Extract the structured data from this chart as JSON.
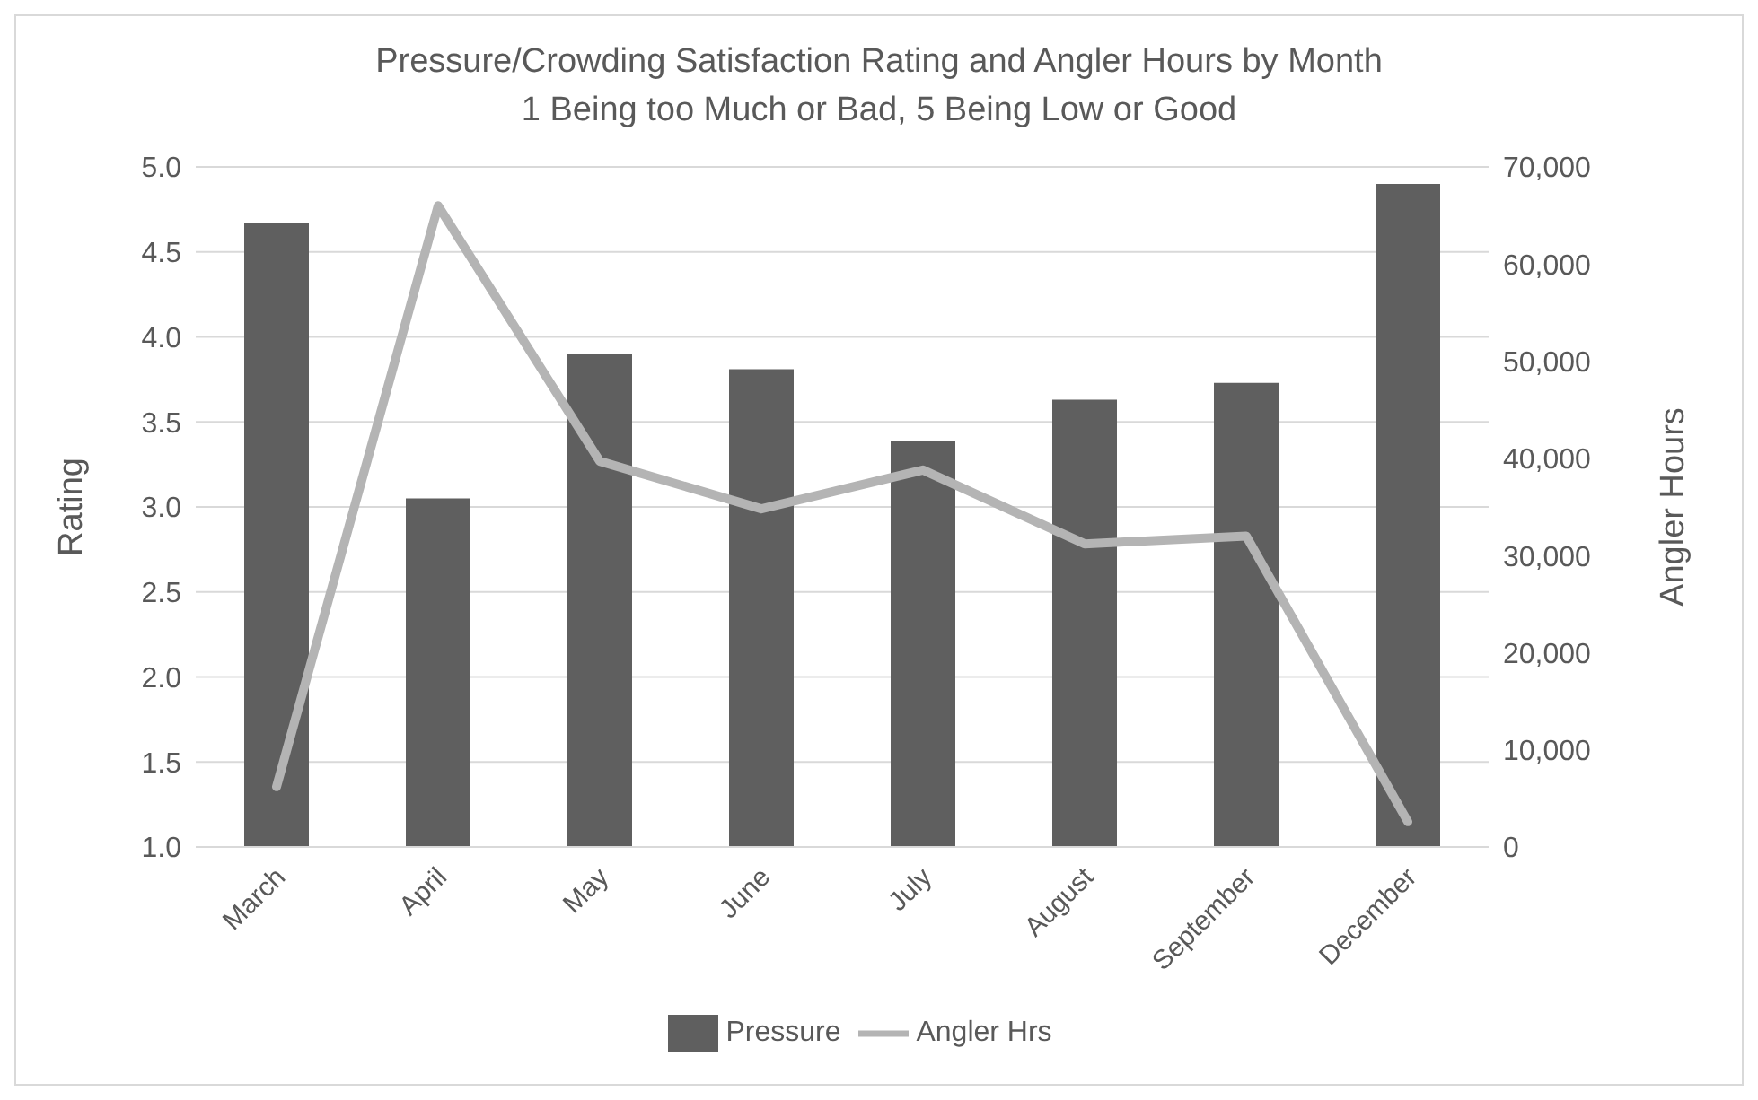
{
  "chart_data": {
    "type": "bar",
    "title": "Pressure/Crowding Satisfaction Rating and Angler Hours by Month",
    "subtitle": "1 Being too Much or Bad, 5 Being Low or Good",
    "categories": [
      "March",
      "April",
      "May",
      "June",
      "July",
      "August",
      "September",
      "December"
    ],
    "series": [
      {
        "name": "Pressure",
        "color": "#5f5f5f",
        "values": [
          4.67,
          3.05,
          3.9,
          3.81,
          3.39,
          3.63,
          3.73,
          4.9
        ]
      },
      {
        "name": "Angler Hrs",
        "type": "line",
        "axis": "y2",
        "color": "#b4b4b4",
        "values": [
          6200,
          66000,
          39700,
          34800,
          38800,
          31200,
          32000,
          2600
        ]
      }
    ],
    "ylabel": "Rating",
    "y2label": "Angler Hours",
    "ylim": [
      1,
      5
    ],
    "yticks": [
      {
        "value": 1,
        "label": "1.0"
      },
      {
        "value": 1.5,
        "label": "1.5"
      },
      {
        "value": 2,
        "label": "2.0"
      },
      {
        "value": 2.5,
        "label": "2.5"
      },
      {
        "value": 3,
        "label": "3.0"
      },
      {
        "value": 3.5,
        "label": "3.5"
      },
      {
        "value": 4,
        "label": "4.0"
      },
      {
        "value": 4.5,
        "label": "4.5"
      },
      {
        "value": 5,
        "label": "5.0"
      }
    ],
    "y2lim": [
      0,
      70000
    ],
    "y2ticks": [
      {
        "value": 0,
        "label": "0"
      },
      {
        "value": 10000,
        "label": "10,000"
      },
      {
        "value": 20000,
        "label": "20,000"
      },
      {
        "value": 30000,
        "label": "30,000"
      },
      {
        "value": 40000,
        "label": "40,000"
      },
      {
        "value": 50000,
        "label": "50,000"
      },
      {
        "value": 60000,
        "label": "60,000"
      },
      {
        "value": 70000,
        "label": "70,000"
      }
    ],
    "grid": "y",
    "legend": "bottom",
    "marker": "none"
  }
}
